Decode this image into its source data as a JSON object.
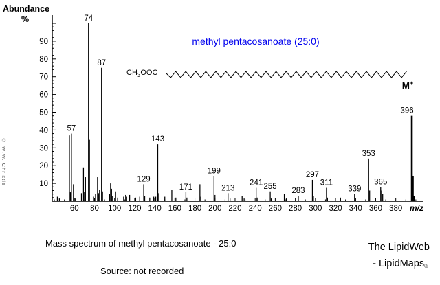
{
  "chart": {
    "title": "methyl pentacosanoate (25:0)",
    "title_color": "#0000ee",
    "ylabel_title": "Abundance",
    "ylabel_units": "%",
    "xlabel": "m/z"
  },
  "chart_data": {
    "type": "bar",
    "subtype": "mass-spectrum-stick-plot",
    "title": "methyl pentacosanoate (25:0)",
    "xlabel": "m/z",
    "ylabel": "Abundance %",
    "x_range": [
      38,
      406
    ],
    "ylim": [
      0,
      100
    ],
    "x_major_ticks": [
      60,
      80,
      100,
      120,
      140,
      160,
      180,
      200,
      220,
      240,
      260,
      280,
      300,
      320,
      340,
      360,
      380
    ],
    "x_minor_tick_step": 10,
    "y_major_ticks": [
      10,
      20,
      30,
      40,
      50,
      60,
      70,
      80,
      90
    ],
    "y_minor_tick_step": 2,
    "grid": false,
    "legend": false,
    "peaks_mz_percent": [
      [
        43,
        2.5
      ],
      [
        45,
        1.5
      ],
      [
        55,
        37
      ],
      [
        56,
        5
      ],
      [
        57,
        38
      ],
      [
        59,
        9.5
      ],
      [
        61,
        1.5
      ],
      [
        67,
        4.5
      ],
      [
        69,
        19
      ],
      [
        70,
        5
      ],
      [
        71,
        13.5
      ],
      [
        74,
        100
      ],
      [
        75,
        34.5
      ],
      [
        79,
        2.5
      ],
      [
        81,
        4
      ],
      [
        83,
        13.5
      ],
      [
        84,
        4.5
      ],
      [
        85,
        6.5
      ],
      [
        87,
        75
      ],
      [
        88,
        5.5
      ],
      [
        95,
        4
      ],
      [
        96,
        10
      ],
      [
        97,
        7
      ],
      [
        98,
        3
      ],
      [
        101,
        5.5
      ],
      [
        103,
        2
      ],
      [
        109,
        2.5
      ],
      [
        111,
        3.5
      ],
      [
        112,
        2.5
      ],
      [
        115,
        3.5
      ],
      [
        121,
        2
      ],
      [
        125,
        2.5
      ],
      [
        129,
        9.5
      ],
      [
        130,
        3
      ],
      [
        135,
        2
      ],
      [
        139,
        2.5
      ],
      [
        141,
        2.5
      ],
      [
        143,
        32
      ],
      [
        144,
        4.5
      ],
      [
        150,
        2.5
      ],
      [
        157,
        6.5
      ],
      [
        161,
        2
      ],
      [
        171,
        5
      ],
      [
        172,
        2
      ],
      [
        185,
        9.5
      ],
      [
        186,
        2.5
      ],
      [
        199,
        14
      ],
      [
        200,
        3.5
      ],
      [
        213,
        4.5
      ],
      [
        215,
        1.5
      ],
      [
        227,
        3
      ],
      [
        229,
        1.5
      ],
      [
        241,
        7.5
      ],
      [
        242,
        2
      ],
      [
        255,
        5.5
      ],
      [
        256,
        1.5
      ],
      [
        269,
        4
      ],
      [
        271,
        1.5
      ],
      [
        283,
        3
      ],
      [
        297,
        12
      ],
      [
        298,
        3
      ],
      [
        311,
        7.5
      ],
      [
        312,
        2
      ],
      [
        325,
        2
      ],
      [
        339,
        4
      ],
      [
        340,
        1.5
      ],
      [
        353,
        24
      ],
      [
        354,
        6
      ],
      [
        365,
        8
      ],
      [
        366,
        6
      ],
      [
        367,
        4
      ],
      [
        396,
        48
      ],
      [
        397,
        14
      ],
      [
        398,
        3
      ]
    ],
    "labeled_peaks": [
      57,
      74,
      87,
      129,
      143,
      171,
      199,
      213,
      241,
      255,
      283,
      297,
      311,
      339,
      353,
      365,
      396
    ],
    "molecular_ion": {
      "mz": 396,
      "label": "M",
      "superscript": "+"
    }
  },
  "structure": {
    "formula_prefix": "CH",
    "formula_subscript": "3",
    "formula_suffix": "OOC"
  },
  "watermark": {
    "text": "© W.W. Christie"
  },
  "footer": {
    "caption": "Mass spectrum of methyl pentacosanoate - 25:0",
    "source": "Source:  not recorded",
    "brand_line1": "The LipidWeb",
    "brand_line2": "- LipidMaps",
    "brand_registered": "®"
  }
}
